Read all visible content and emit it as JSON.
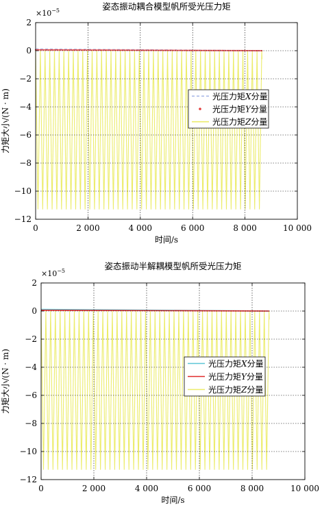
{
  "chart_data": [
    {
      "type": "line",
      "title": "姿态振动耦合模型帆所受光压力矩",
      "xlabel": "时间/s",
      "ylabel": "力矩大小/(N · m)",
      "y_multiplier": "×10",
      "y_exponent": "−5",
      "xlim": [
        0,
        10000
      ],
      "ylim": [
        -12,
        2
      ],
      "xticks": [
        0,
        2000,
        4000,
        6000,
        8000,
        10000
      ],
      "xtick_labels": [
        "0",
        "2 000",
        "4 000",
        "6 000",
        "8 000",
        "10 000"
      ],
      "yticks": [
        2,
        0,
        -2,
        -4,
        -6,
        -8,
        -10,
        -12
      ],
      "ytick_labels": [
        "2",
        "0",
        "−2",
        "−4",
        "−6",
        "−8",
        "−10",
        "−12"
      ],
      "grid": true,
      "legend_position": "right-middle",
      "series": [
        {
          "name_prefix": "光压力矩",
          "name_axis": "X",
          "name_suffix": "分量",
          "style": "dashed",
          "color": "#aab8e8",
          "x_end": 8650,
          "y_start": 0.12,
          "y_end": 0.0
        },
        {
          "name_prefix": "光压力矩",
          "name_axis": "Y",
          "name_suffix": "分量",
          "style": "dots",
          "color": "#e23a3a",
          "x_end": 8650,
          "y_start": 0.06,
          "y_end": 0.0
        },
        {
          "name_prefix": "光压力矩",
          "name_axis": "Z",
          "name_suffix": "分量",
          "style": "solid",
          "color": "#ecec6a",
          "x_end": 8650,
          "y_max": 0.0,
          "y_min": -11.3,
          "oscillation_period_s": 180
        }
      ]
    },
    {
      "type": "line",
      "title": "姿态振动半解耦模型帆所受光压力矩",
      "xlabel": "时间/s",
      "ylabel": "力矩大小/(N · m)",
      "y_multiplier": "×10",
      "y_exponent": "−5",
      "xlim": [
        0,
        10000
      ],
      "ylim": [
        -12,
        2
      ],
      "xticks": [
        0,
        2000,
        4000,
        6000,
        8000,
        10000
      ],
      "xtick_labels": [
        "0",
        "2 000",
        "4 000",
        "6 000",
        "8 000",
        "10 000"
      ],
      "yticks": [
        2,
        0,
        -2,
        -4,
        -6,
        -8,
        -10,
        -12
      ],
      "ytick_labels": [
        "2",
        "0",
        "−2",
        "−4",
        "−6",
        "−8",
        "−10",
        "−12"
      ],
      "grid": true,
      "legend_position": "right-middle",
      "series": [
        {
          "name_prefix": "光压力矩",
          "name_axis": "X",
          "name_suffix": "分量",
          "style": "solid",
          "color": "#5cc6d6",
          "x_end": 8650,
          "y_start": 0.12,
          "y_end": 0.0
        },
        {
          "name_prefix": "光压力矩",
          "name_axis": "Y",
          "name_suffix": "分量",
          "style": "solid",
          "color": "#e02a2a",
          "x_end": 8650,
          "y_start": 0.06,
          "y_end": 0.0
        },
        {
          "name_prefix": "光压力矩",
          "name_axis": "Z",
          "name_suffix": "分量",
          "style": "solid",
          "color": "#ecec6a",
          "x_end": 8650,
          "y_max": 0.0,
          "y_min": -11.3,
          "oscillation_period_s": 180
        }
      ]
    }
  ]
}
